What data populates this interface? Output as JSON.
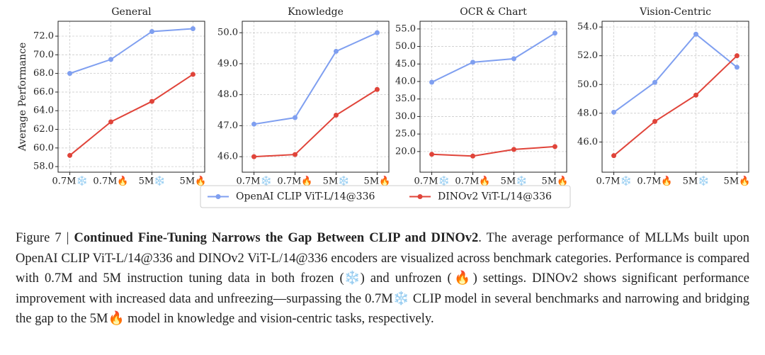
{
  "chart_data": [
    {
      "type": "line",
      "title": "General",
      "ylabel": "Average Performance",
      "categories": [
        "0.7M❄️",
        "0.7M🔥",
        "5M❄️",
        "5M🔥"
      ],
      "series": [
        {
          "name": "OpenAI CLIP ViT-L/14@336",
          "color": "#7f9ff0",
          "values": [
            68.0,
            69.5,
            72.5,
            72.8
          ]
        },
        {
          "name": "DINOv2 ViT-L/14@336",
          "color": "#e0443a",
          "values": [
            59.2,
            62.8,
            65.0,
            67.9
          ]
        }
      ],
      "ylim": [
        57.4,
        73.6
      ],
      "yticks": [
        {
          "value": 58,
          "label": "58.0"
        },
        {
          "value": 60,
          "label": "60.0"
        },
        {
          "value": 62,
          "label": "62.0"
        },
        {
          "value": 64,
          "label": "64.0"
        },
        {
          "value": 66,
          "label": "66.0"
        },
        {
          "value": 68,
          "label": "68.0"
        },
        {
          "value": 70,
          "label": "70.0"
        },
        {
          "value": 72,
          "label": "72.0"
        }
      ],
      "grid": true
    },
    {
      "type": "line",
      "title": "Knowledge",
      "categories": [
        "0.7M❄️",
        "0.7M🔥",
        "5M❄️",
        "5M🔥"
      ],
      "series": [
        {
          "name": "OpenAI CLIP ViT-L/14@336",
          "color": "#7f9ff0",
          "values": [
            47.05,
            47.26,
            49.4,
            50.0
          ]
        },
        {
          "name": "DINOv2 ViT-L/14@336",
          "color": "#e0443a",
          "values": [
            46.0,
            46.07,
            47.34,
            48.17
          ]
        }
      ],
      "ylim": [
        45.5,
        50.37
      ],
      "yticks": [
        {
          "value": 46,
          "label": "46.0"
        },
        {
          "value": 47,
          "label": "47.0"
        },
        {
          "value": 48,
          "label": "48.0"
        },
        {
          "value": 49,
          "label": "49.0"
        },
        {
          "value": 50,
          "label": "50.0"
        }
      ],
      "grid": true
    },
    {
      "type": "line",
      "title": "OCR & Chart",
      "categories": [
        "0.7M❄️",
        "0.7M🔥",
        "5M❄️",
        "5M🔥"
      ],
      "series": [
        {
          "name": "OpenAI CLIP ViT-L/14@336",
          "color": "#7f9ff0",
          "values": [
            39.8,
            45.5,
            46.5,
            53.8
          ]
        },
        {
          "name": "DINOv2 ViT-L/14@336",
          "color": "#e0443a",
          "values": [
            19.2,
            18.7,
            20.6,
            21.4
          ]
        }
      ],
      "ylim": [
        14.1,
        57.2
      ],
      "yticks": [
        {
          "value": 20,
          "label": "20.0"
        },
        {
          "value": 25,
          "label": "25.0"
        },
        {
          "value": 30,
          "label": "30.0"
        },
        {
          "value": 35,
          "label": "35.0"
        },
        {
          "value": 40,
          "label": "40.0"
        },
        {
          "value": 45,
          "label": "45.0"
        },
        {
          "value": 50,
          "label": "50.0"
        },
        {
          "value": 55,
          "label": "55.0"
        }
      ],
      "grid": true
    },
    {
      "type": "line",
      "title": "Vision-Centric",
      "categories": [
        "0.7M❄️",
        "0.7M🔥",
        "5M❄️",
        "5M🔥"
      ],
      "series": [
        {
          "name": "OpenAI CLIP ViT-L/14@336",
          "color": "#7f9ff0",
          "values": [
            48.07,
            50.15,
            53.5,
            51.2
          ]
        },
        {
          "name": "DINOv2 ViT-L/14@336",
          "color": "#e0443a",
          "values": [
            45.05,
            47.43,
            49.26,
            52.0
          ]
        }
      ],
      "ylim": [
        43.9,
        54.4
      ],
      "yticks": [
        {
          "value": 46,
          "label": "46.0"
        },
        {
          "value": 48,
          "label": "48.0"
        },
        {
          "value": 50,
          "label": "50.0"
        },
        {
          "value": 52,
          "label": "52.0"
        },
        {
          "value": 54,
          "label": "54.0"
        }
      ],
      "grid": true
    }
  ],
  "caption": {
    "label": "Figure 7 | ",
    "title": "Continued Fine-Tuning Narrows the Gap Between CLIP and DINOv2",
    "text": ". The average performance of MLLMs built upon OpenAI CLIP ViT-L/14@336 and DINOv2 ViT-L/14@336 encoders are visualized across benchmark categories. Performance is compared with 0.7M and 5M instruction tuning data in both frozen (❄️) and unfrozen (🔥) settings. DINOv2 shows significant performance improvement with increased data and unfreezing—surpassing the 0.7M❄️ CLIP model in several benchmarks and narrowing and bridging the gap to the 5M🔥 model in knowledge and vision-centric tasks, respectively."
  }
}
